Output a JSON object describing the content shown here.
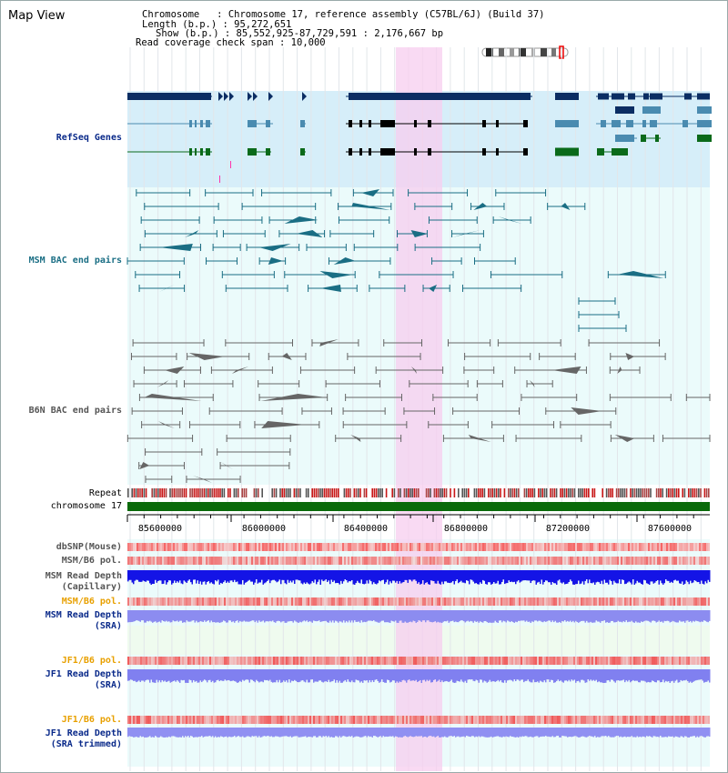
{
  "view_title": "Map View",
  "info": {
    "chromosome_line": "Chromosome   : Chromosome 17, reference assembly (C57BL/6J) (Build 37)",
    "length_line": "Length (b.p.) : 95,272,651",
    "show_line": "Show (b.p.) : 85,552,925-87,729,591 : 2,176,667 bp",
    "coverage_line": "Read coverage check span : 10,000"
  },
  "tracks": {
    "refseq": "RefSeq Genes",
    "msm_bac": "MSM BAC end pairs",
    "b6n_bac": "B6N BAC end pairs",
    "repeat": "Repeat",
    "chromosome": "chromosome 17",
    "dbsnp": "dbSNP(Mouse)",
    "msm_b6_pol_1": "MSM/B6 pol.",
    "msm_read_depth_cap_1": "MSM Read Depth",
    "msm_read_depth_cap_2": "(Capillary)",
    "msm_b6_pol_2": "MSM/B6 pol.",
    "msm_read_depth_sra_1": "MSM Read Depth",
    "msm_read_depth_sra_2": "(SRA)",
    "jf1_b6_pol_1": "JF1/B6 pol.",
    "jf1_read_depth_sra_1": "JF1 Read Depth",
    "jf1_read_depth_sra_2": "(SRA)",
    "jf1_b6_pol_2": "JF1/B6 pol.",
    "jf1_read_depth_trim_1": "JF1 Read Depth",
    "jf1_read_depth_trim_2": "(SRA trimmed)"
  },
  "axis_ticks": [
    "85600000",
    "86000000",
    "86400000",
    "86800000",
    "87200000",
    "87600000"
  ],
  "colors": {
    "refseq_bg": "#d6eef9",
    "track_bg": "#ebfbfb",
    "highlight": "#f9d9f3",
    "gene_dark": "#0b2d63",
    "gene_mid": "#4a8bb0",
    "gene_green": "#0a6a1a",
    "chromosome_bar": "#0a6a0a",
    "snp_red": "#e83030",
    "depth_blue": "#1010e0",
    "depth_light": "#8080ee"
  }
}
